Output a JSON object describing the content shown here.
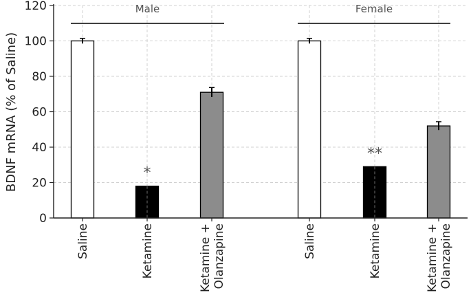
{
  "chart_data": {
    "type": "bar",
    "title": "",
    "xlabel": "",
    "ylabel": "BDNF mRNA (% of Saline)",
    "ylim": [
      0,
      120
    ],
    "yticks": [
      0,
      20,
      40,
      60,
      80,
      100,
      120
    ],
    "grid": true,
    "groups": [
      {
        "name": "Male",
        "bars": [
          {
            "category": "Saline",
            "value": 100,
            "error": 0.3,
            "color": "#ffffff",
            "significance": ""
          },
          {
            "category": "Ketamine",
            "value": 18,
            "error": 0,
            "color": "#000000",
            "significance": "*"
          },
          {
            "category": "Ketamine + Olanzapine",
            "value": 71,
            "error": 1.5,
            "color": "#8c8c8c",
            "significance": ""
          }
        ]
      },
      {
        "name": "Female",
        "bars": [
          {
            "category": "Saline",
            "value": 100,
            "error": 0.3,
            "color": "#ffffff",
            "significance": ""
          },
          {
            "category": "Ketamine",
            "value": 29,
            "error": 0,
            "color": "#000000",
            "significance": "**"
          },
          {
            "category": "Ketamine + Olanzapine",
            "value": 52,
            "error": 1.2,
            "color": "#8c8c8c",
            "significance": ""
          }
        ]
      }
    ]
  }
}
